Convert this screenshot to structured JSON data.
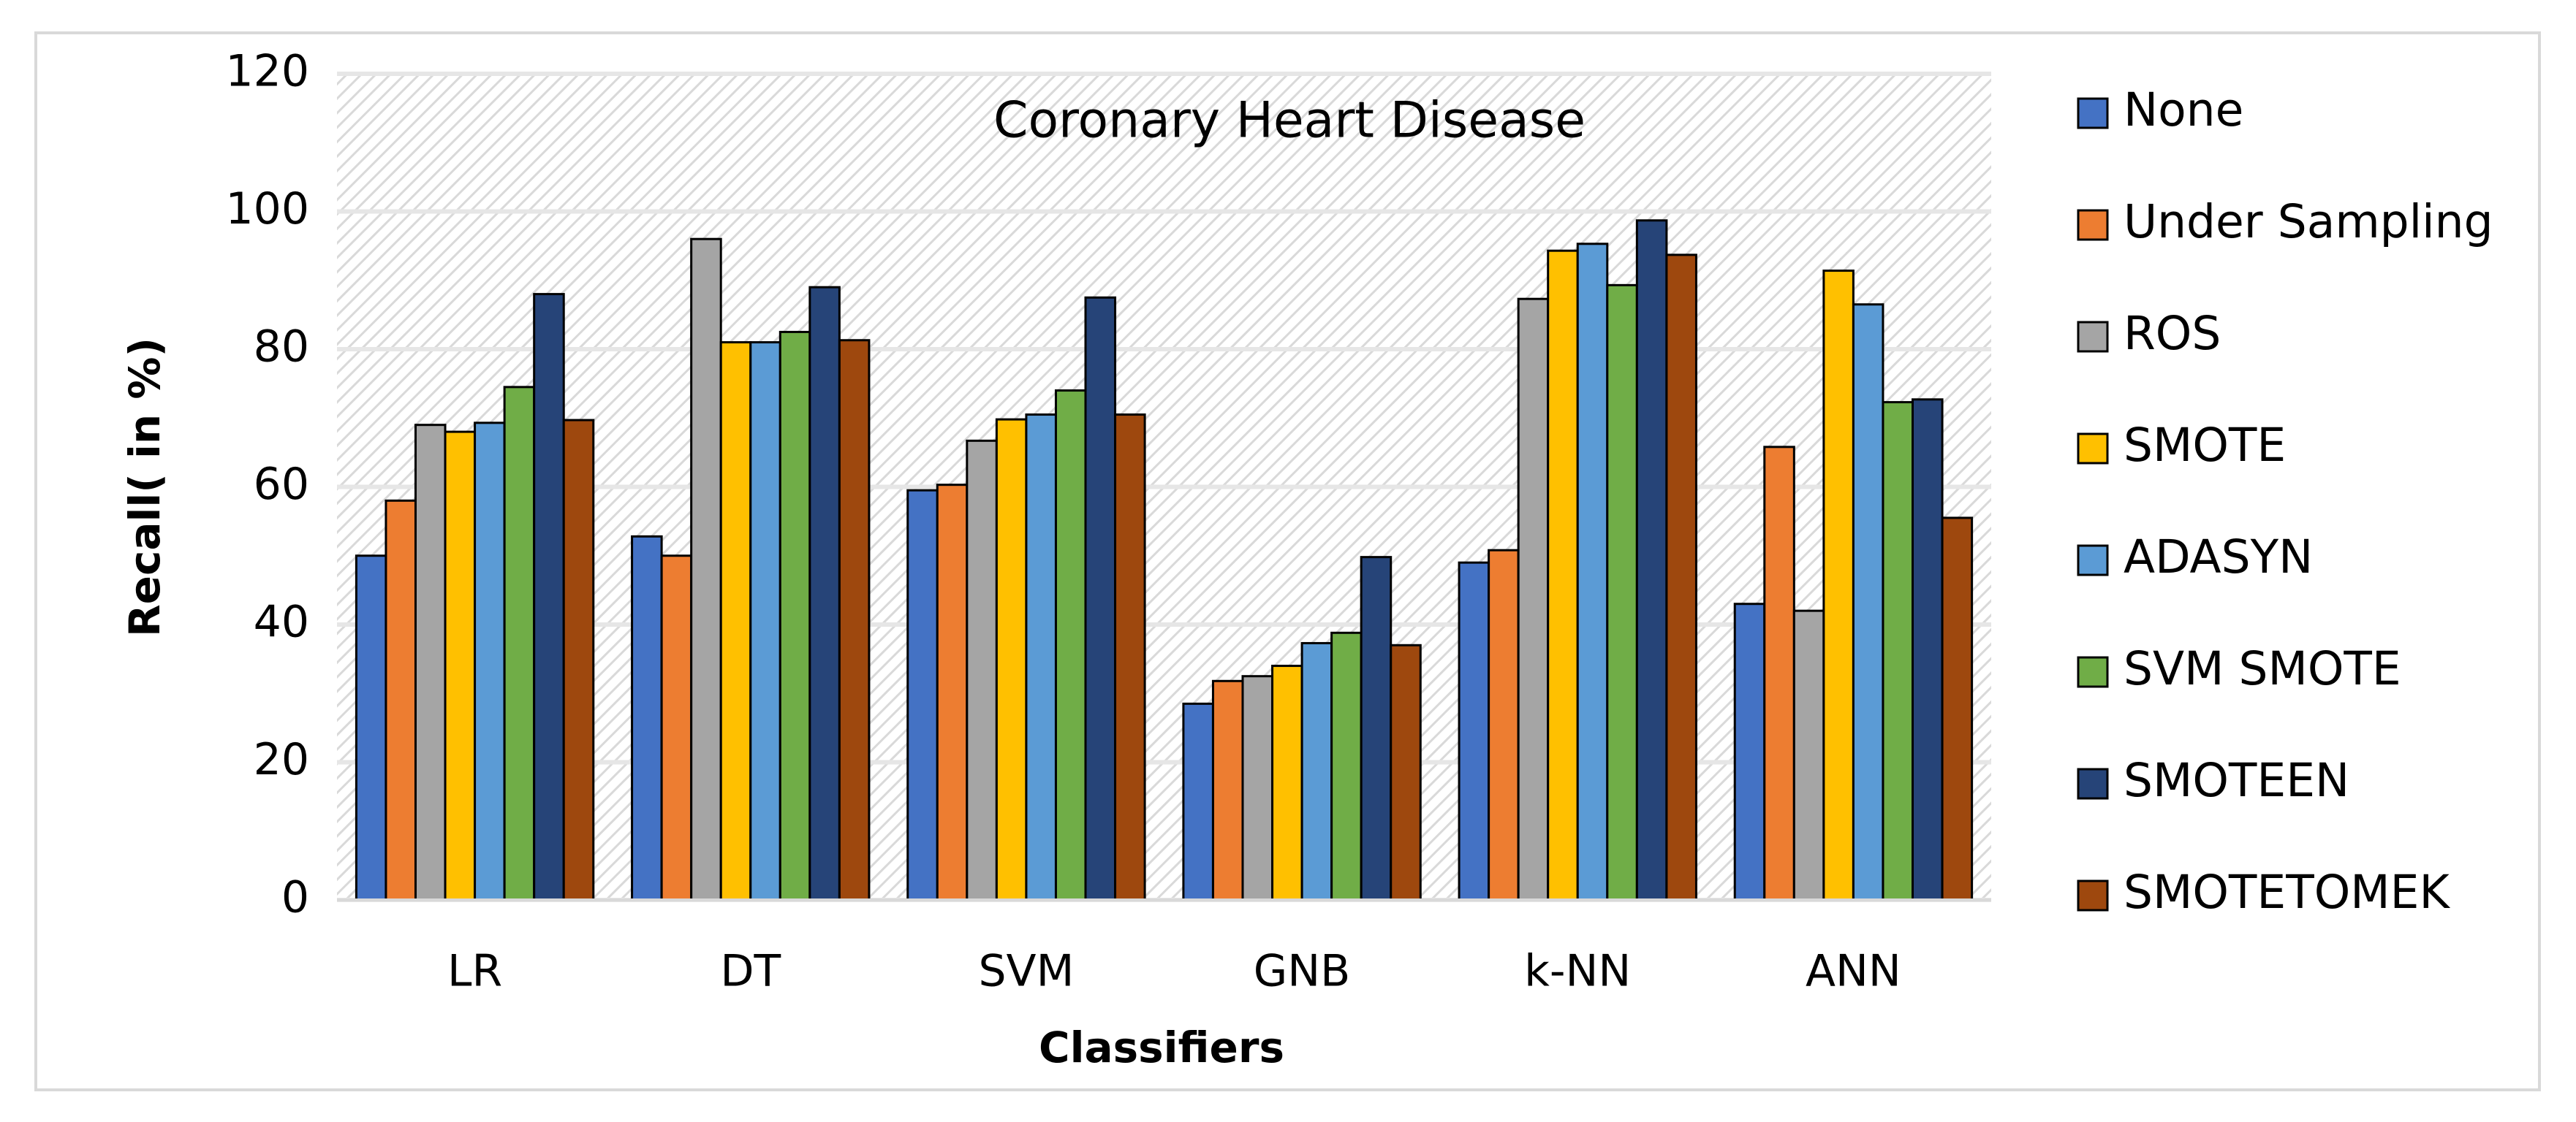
{
  "chart_data": {
    "type": "bar",
    "title": "Coronary Heart Disease",
    "x_label": "Classifiers",
    "y_label": "Recall( in %)",
    "categories": [
      "LR",
      "DT",
      "SVM",
      "GNB",
      "k-NN",
      "ANN"
    ],
    "series": [
      {
        "name": "None",
        "color": "#4472c4",
        "values": [
          50,
          52.8,
          59.5,
          28.5,
          49,
          43
        ]
      },
      {
        "name": "Under Sampling",
        "color": "#ed7d31",
        "values": [
          58,
          50,
          60.3,
          31.8,
          50.8,
          65.8
        ]
      },
      {
        "name": "ROS",
        "color": "#a5a5a5",
        "values": [
          69,
          96,
          66.7,
          32.5,
          87.3,
          42
        ]
      },
      {
        "name": "SMOTE",
        "color": "#ffc000",
        "values": [
          68,
          81,
          69.8,
          34,
          94.3,
          91.4
        ]
      },
      {
        "name": "ADASYN",
        "color": "#5b9bd5",
        "values": [
          69.3,
          81,
          70.5,
          37.3,
          95.3,
          86.5
        ]
      },
      {
        "name": "SVM SMOTE",
        "color": "#70ad47",
        "values": [
          74.5,
          82.5,
          74,
          38.8,
          89.3,
          72.3
        ]
      },
      {
        "name": "SMOTEEN",
        "color": "#264478",
        "values": [
          88,
          89,
          87.5,
          49.8,
          98.7,
          72.7
        ]
      },
      {
        "name": "SMOTETOMEK",
        "color": "#9e480e",
        "values": [
          69.7,
          81.3,
          70.5,
          37,
          93.7,
          55.5
        ]
      }
    ],
    "ylim": [
      0,
      120
    ],
    "yticks": [
      0,
      20,
      40,
      60,
      80,
      100,
      120
    ],
    "grid": true,
    "legend": "right"
  }
}
